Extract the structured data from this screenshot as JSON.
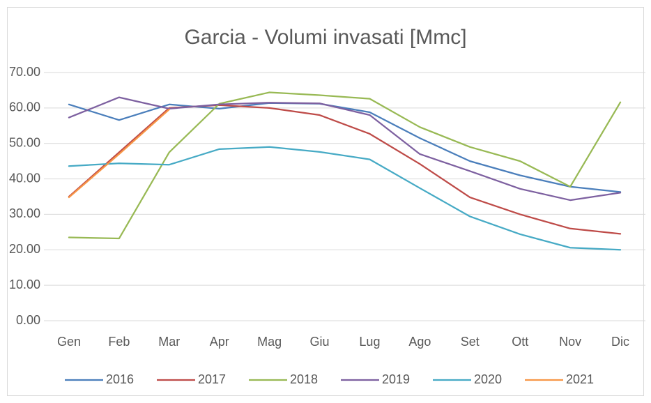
{
  "chart_data": {
    "type": "line",
    "title": "Garcia - Volumi invasati [Mmc]",
    "categories": [
      "Gen",
      "Feb",
      "Mar",
      "Apr",
      "Mag",
      "Giu",
      "Lug",
      "Ago",
      "Set",
      "Ott",
      "Nov",
      "Dic"
    ],
    "series": [
      {
        "name": "2016",
        "color": "#4a7ebb",
        "values": [
          61,
          56.6,
          61,
          59.8,
          61.4,
          61.2,
          58.8,
          51.5,
          45,
          41,
          37.8,
          36.3
        ]
      },
      {
        "name": "2017",
        "color": "#be4b48",
        "values": [
          35,
          47.5,
          60,
          60.8,
          60,
          58,
          52.7,
          44.2,
          34.8,
          30,
          26,
          24.5
        ]
      },
      {
        "name": "2018",
        "color": "#98b954",
        "values": [
          23.5,
          23.2,
          47.5,
          61.2,
          64.4,
          63.6,
          62.6,
          54.6,
          49,
          45,
          37.8,
          61.6
        ]
      },
      {
        "name": "2019",
        "color": "#7d60a0",
        "values": [
          57.3,
          63,
          59.8,
          61,
          61.5,
          61.3,
          58,
          47,
          42.2,
          37.2,
          34,
          36.1
        ]
      },
      {
        "name": "2020",
        "color": "#46aac5",
        "values": [
          43.6,
          44.4,
          44,
          48.4,
          49,
          47.6,
          45.5,
          37.4,
          29.4,
          24.4,
          20.6,
          20
        ]
      },
      {
        "name": "2021",
        "color": "#f79646",
        "values": [
          34.8,
          47,
          59.6,
          null,
          null,
          null,
          null,
          null,
          null,
          null,
          null,
          null
        ]
      }
    ],
    "ylim": [
      0,
      70
    ],
    "yticks": [
      {
        "value": 0,
        "label": "0.00"
      },
      {
        "value": 10,
        "label": "10.00"
      },
      {
        "value": 20,
        "label": "20.00"
      },
      {
        "value": 30,
        "label": "30.00"
      },
      {
        "value": 40,
        "label": "40.00"
      },
      {
        "value": 50,
        "label": "50.00"
      },
      {
        "value": 60,
        "label": "60.00"
      },
      {
        "value": 70,
        "label": "70.00"
      }
    ],
    "grid": true,
    "legend": "bottom"
  }
}
